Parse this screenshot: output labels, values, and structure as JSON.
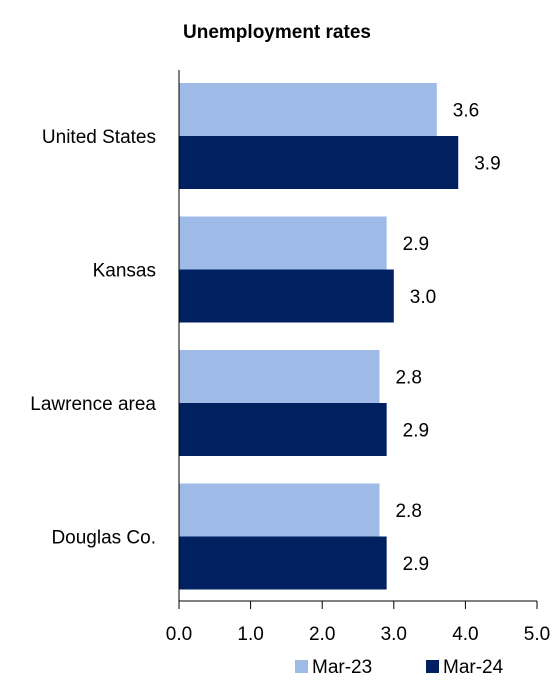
{
  "chart_data": {
    "type": "bar",
    "orientation": "horizontal",
    "title": "Unemployment rates",
    "categories": [
      "United States",
      "Kansas",
      "Lawrence area",
      "Douglas Co."
    ],
    "series": [
      {
        "name": "Mar-23",
        "color": "#9dbbe6",
        "values": [
          3.6,
          2.9,
          2.8,
          2.8
        ]
      },
      {
        "name": "Mar-24",
        "color": "#002060",
        "values": [
          3.9,
          3.0,
          2.9,
          2.9
        ]
      }
    ],
    "xlim": [
      0,
      5
    ],
    "x_ticks": [
      "0.0",
      "1.0",
      "2.0",
      "3.0",
      "4.0",
      "5.0"
    ],
    "data_labels": [
      [
        "3.6",
        "2.9",
        "2.8",
        "2.8"
      ],
      [
        "3.9",
        "3.0",
        "2.9",
        "2.9"
      ]
    ],
    "xlabel": "",
    "ylabel": "",
    "grid": false,
    "legend_position": "bottom-right"
  }
}
